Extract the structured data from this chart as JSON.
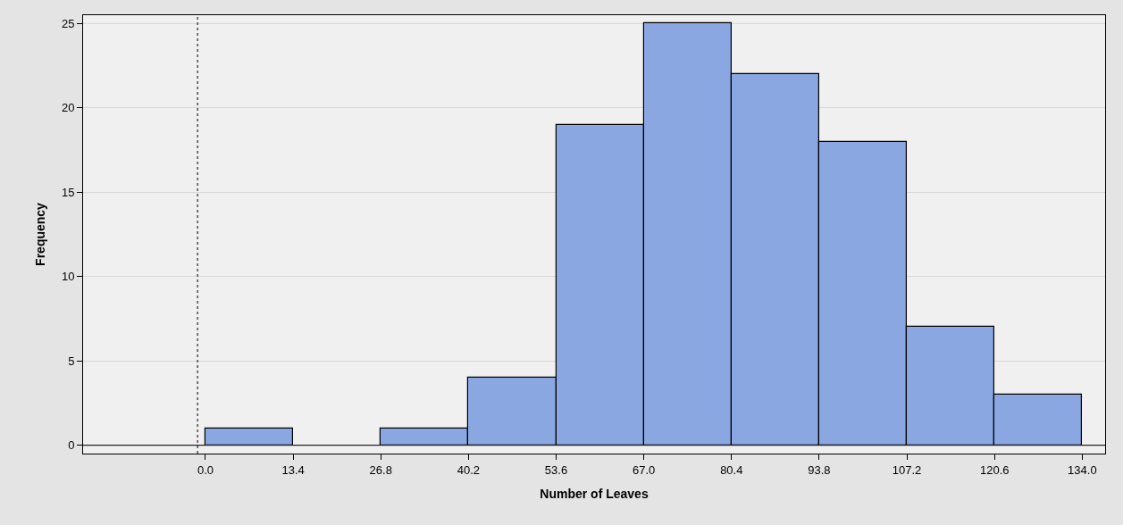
{
  "chart_data": {
    "type": "histogram",
    "xlabel": "Number of Leaves",
    "ylabel": "Frequency",
    "bins": [
      0,
      13.4,
      26.8,
      40.2,
      53.6,
      67.0,
      80.4,
      93.8,
      107.2,
      120.6,
      134.0
    ],
    "values": [
      1,
      0,
      1,
      4,
      19,
      25,
      22,
      18,
      7,
      3
    ],
    "color": "#8aa7e2",
    "xlim": [
      -18.7,
      137.5
    ],
    "ylim": [
      -0.5,
      25.5
    ],
    "xticks": [
      {
        "value": 0,
        "label": "0.0"
      },
      13.4,
      26.8,
      40.2,
      53.6,
      {
        "value": 67.0,
        "label": "67.0"
      },
      80.4,
      93.8,
      107.2,
      120.6,
      {
        "value": 134.0,
        "label": "134.0"
      }
    ],
    "yticks": [
      0,
      5,
      10,
      15,
      20,
      25
    ],
    "grid": "y",
    "ref_lines": [
      {
        "axis": "x",
        "value": -1.2,
        "line_style": "dotted",
        "color": "#333333"
      },
      {
        "axis": "y",
        "value": 0,
        "line_style": "solid",
        "color": "#222222"
      }
    ]
  }
}
